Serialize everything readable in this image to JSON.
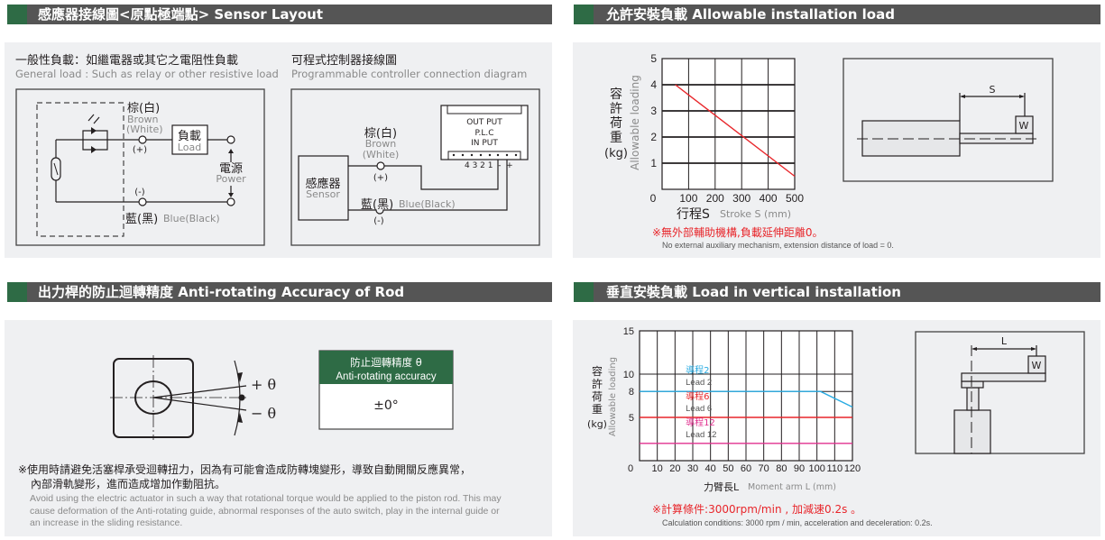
{
  "colors": {
    "header_bg": "#555555",
    "header_accent": "#2e6b45",
    "panel_bg": "#eff0f2",
    "note_red": "#e8262b",
    "lead2": "#29abe2",
    "lead6": "#e8262b",
    "lead12": "#e0308f"
  },
  "sensor_layout": {
    "header": "感應器接線圖<原點極端點>  Sensor Layout",
    "general": {
      "title_cn": "一般性負載：如繼電器或其它之電阻性負載",
      "title_en": "General load : Such as relay or other resistive load",
      "brown_cn": "棕(白)",
      "brown_en": "Brown",
      "white_en": "(White)",
      "plus": "(+)",
      "minus": "(-)",
      "blue_cn": "藍(黑)",
      "blue_en": "Blue(Black)",
      "load_cn": "負載",
      "load_en": "Load",
      "power_cn": "電源",
      "power_en": "Power"
    },
    "plc": {
      "title_cn": "可程式控制器接線圖",
      "title_en": "Programmable controller connection diagram",
      "sensor_cn": "感應器",
      "sensor_en": "Sensor",
      "brown_cn": "棕(白)",
      "brown_en": "Brown",
      "white_en": "(White)",
      "plus": "(+)",
      "minus": "(-)",
      "blue_cn": "藍(黑)",
      "blue_en": "Blue(Black)",
      "output": "OUT PUT",
      "plc": "P.L.C",
      "input": "IN PUT",
      "terminals": "4 3 2 1  -  +"
    }
  },
  "allowable_load": {
    "header": "允許安裝負載  Allowable installation load",
    "ylabel_cn": [
      "容",
      "許",
      "荷",
      "重"
    ],
    "ylabel_unit": "(kg)",
    "ylabel_en": "Allowable loading",
    "xlabel_cn": "行程S",
    "xlabel_en": "Stroke S (mm)",
    "note_cn": "※無外部輔助機構,負載延伸距離0。",
    "note_en": "No external auxiliary mechanism, extension distance of load = 0.",
    "diagram": {
      "dim_label": "S",
      "weight_label": "W"
    }
  },
  "anti_rotating": {
    "header": "出力桿的防止迴轉精度  Anti-rotating Accuracy of Rod",
    "plus_theta": "+ θ",
    "minus_theta": "− θ",
    "table": {
      "header_cn": "防止迴轉精度 θ",
      "header_en": "Anti-rotating accuracy",
      "value": "±0°"
    },
    "note_cn_1": "※使用時請避免活塞桿承受迴轉扭力，因為有可能會造成防轉塊變形，導致自動開關反應異常，",
    "note_cn_2": "內部滑軌變形，進而造成增加作動阻抗。",
    "note_en_1": "Avoid using the electric actuator in such a way that rotational torque would be applied to the piston rod. This may",
    "note_en_2": "cause deformation of the Anti-rotating guide, abnormal responses of the auto switch, play in the internal guide or",
    "note_en_3": "an increase in the sliding resistance."
  },
  "vertical_load": {
    "header": "垂直安裝負載  Load in vertical installation",
    "ylabel_cn": [
      "容",
      "許",
      "荷",
      "重"
    ],
    "ylabel_unit": "(kg)",
    "ylabel_en": "Allowable loading",
    "xlabel_cn": "力臂長L",
    "xlabel_en": "Moment arm L (mm)",
    "note_cn": "※計算條件:3000rpm/min , 加減速0.2s 。",
    "note_en": "Calculation conditions: 3000 rpm / min, acceleration and deceleration: 0.2s.",
    "diagram": {
      "dim_label": "L",
      "weight_label": "W"
    }
  },
  "chart_data": [
    {
      "type": "line",
      "xlim": [
        0,
        500
      ],
      "ylim": [
        0,
        5
      ],
      "grid": true,
      "x_ticks": [
        "0",
        "100",
        "200",
        "300",
        "400",
        "500"
      ],
      "y_ticks": [
        "1",
        "2",
        "3",
        "4",
        "5"
      ],
      "series": [
        {
          "color": "#e8262b",
          "x": [
            50,
            500
          ],
          "y": [
            4,
            0.5
          ]
        }
      ]
    },
    {
      "type": "line",
      "xlim": [
        0,
        120
      ],
      "ylim": [
        0,
        15
      ],
      "grid": true,
      "x_ticks": [
        "0",
        "10",
        "20",
        "30",
        "40",
        "50",
        "60",
        "70",
        "80",
        "90",
        "100",
        "110",
        "120"
      ],
      "y_ticks": [
        "5",
        "8",
        "10",
        "15"
      ],
      "series": [
        {
          "name_cn": "導程2",
          "name": "Lead 2",
          "color": "#29abe2",
          "x": [
            0,
            102,
            120
          ],
          "y": [
            8,
            8,
            6.2
          ]
        },
        {
          "name_cn": "導程6",
          "name": "Lead 6",
          "color": "#e8262b",
          "x": [
            0,
            120
          ],
          "y": [
            5,
            5
          ]
        },
        {
          "name_cn": "導程12",
          "name": "Lead 12",
          "color": "#e0308f",
          "x": [
            0,
            120
          ],
          "y": [
            2,
            2
          ]
        }
      ]
    }
  ]
}
